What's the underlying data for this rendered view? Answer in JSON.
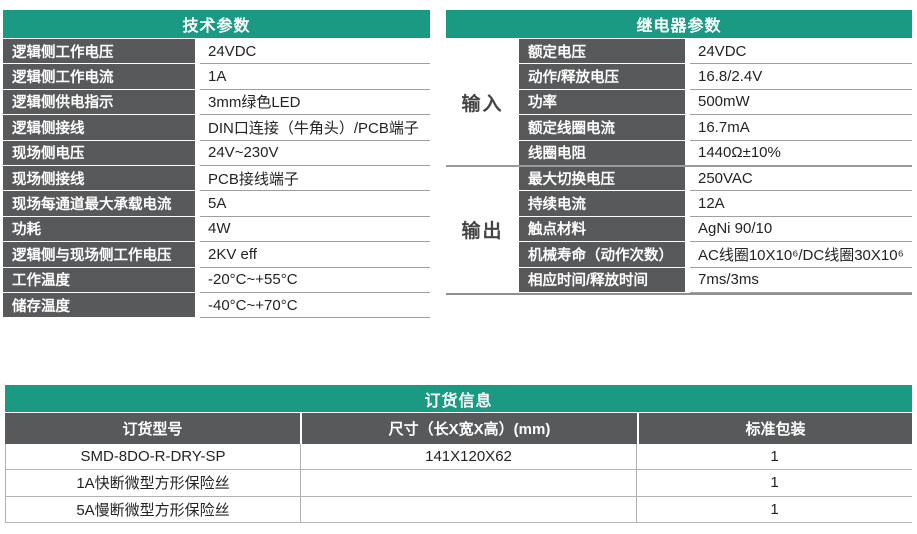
{
  "colors": {
    "header_teal": "#1a9a82",
    "label_dark_gray": "#58595b",
    "divider_gray": "#9f9f9f",
    "text_dark": "#232323"
  },
  "tech_table": {
    "title": "技术参数",
    "rows": [
      {
        "label": "逻辑侧工作电压",
        "value": "24VDC"
      },
      {
        "label": "逻辑侧工作电流",
        "value": "1A"
      },
      {
        "label": "逻辑侧供电指示",
        "value": "3mm绿色LED"
      },
      {
        "label": "逻辑侧接线",
        "value": "DIN口连接（牛角头）/PCB端子"
      },
      {
        "label": "现场侧电压",
        "value": "24V~230V"
      },
      {
        "label": "现场侧接线",
        "value": "PCB接线端子"
      },
      {
        "label": "现场每通道最大承载电流",
        "value": "5A"
      },
      {
        "label": "功耗",
        "value": "4W"
      },
      {
        "label": "逻辑侧与现场侧工作电压",
        "value": "2KV eff"
      },
      {
        "label": "工作温度",
        "value": "-20°C~+55°C"
      },
      {
        "label": "储存温度",
        "value": "-40°C~+70°C"
      }
    ]
  },
  "relay_table": {
    "title": "继电器参数",
    "groups": [
      {
        "name": "输入",
        "rows": [
          {
            "label": "额定电压",
            "value": "24VDC"
          },
          {
            "label": "动作/释放电压",
            "value": "16.8/2.4V"
          },
          {
            "label": "功率",
            "value": "500mW"
          },
          {
            "label": "额定线圈电流",
            "value": "16.7mA"
          },
          {
            "label": "线圈电阻",
            "value": "1440Ω±10%"
          }
        ]
      },
      {
        "name": "输出",
        "rows": [
          {
            "label": "最大切换电压",
            "value": "250VAC"
          },
          {
            "label": "持续电流",
            "value": "12A"
          },
          {
            "label": "触点材料",
            "value": "AgNi 90/10"
          },
          {
            "label": "机械寿命（动作次数）",
            "value": "AC线圈10X10⁶/DC线圈30X10⁶"
          },
          {
            "label": "相应时间/释放时间",
            "value": "7ms/3ms"
          }
        ]
      }
    ]
  },
  "order_table": {
    "title": "订货信息",
    "columns": [
      "订货型号",
      "尺寸（长X宽X高）(mm)",
      "标准包装"
    ],
    "rows": [
      {
        "model": "SMD-8DO-R-DRY-SP",
        "size": "141X120X62",
        "pack": "1"
      },
      {
        "model": "1A快断微型方形保险丝",
        "size": "",
        "pack": "1"
      },
      {
        "model": "5A慢断微型方形保险丝",
        "size": "",
        "pack": "1"
      }
    ]
  }
}
